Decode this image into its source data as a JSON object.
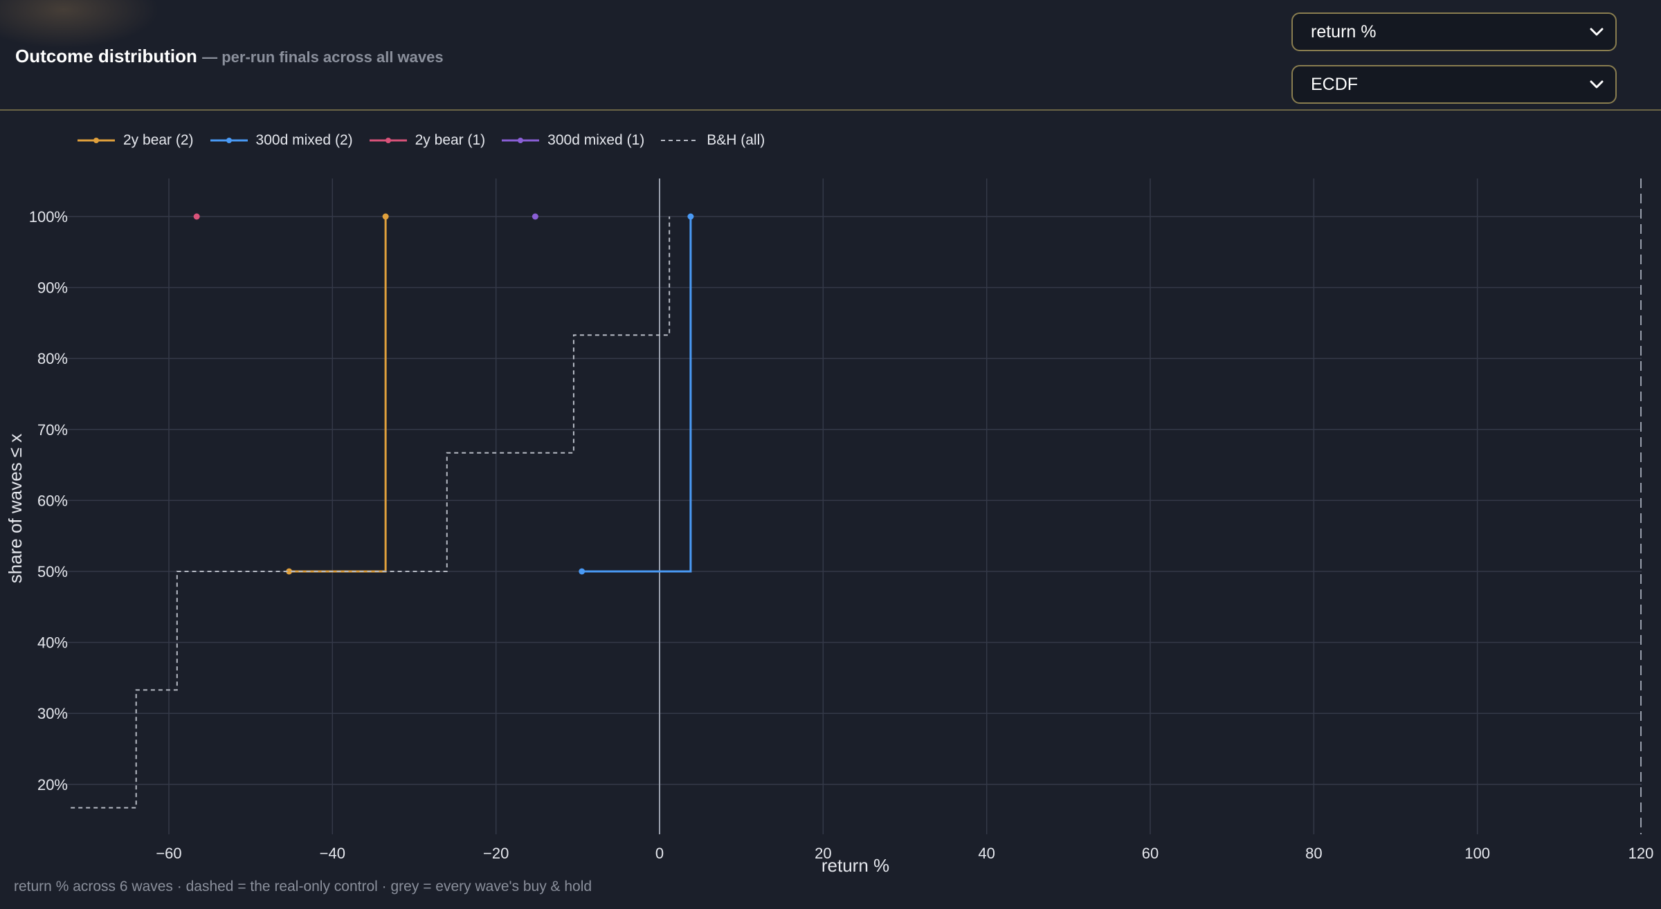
{
  "header": {
    "title": "Outcome distribution",
    "subtitle": "— per-run finals across all waves",
    "metric_select": {
      "value": "return %"
    },
    "view_select": {
      "value": "ECDF"
    }
  },
  "footnote": "return % across 6 waves · dashed = the real-only control · grey = every wave's buy & hold",
  "colors": {
    "background": "#1b1f2a",
    "grid": "#343948",
    "accent_border": "#8a7e50"
  },
  "chart_data": {
    "type": "line",
    "xlabel": "return %",
    "ylabel": "share of waves ≤ x",
    "xlim": [
      -72,
      120
    ],
    "ylim": [
      14,
      105
    ],
    "x_ticks": [
      -60,
      -40,
      -20,
      0,
      20,
      40,
      60,
      80,
      100,
      120
    ],
    "x_tick_labels": [
      "−60",
      "−40",
      "−20",
      "0",
      "20",
      "40",
      "60",
      "80",
      "100",
      "120"
    ],
    "y_ticks": [
      20,
      30,
      40,
      50,
      60,
      70,
      80,
      90,
      100
    ],
    "y_tick_labels": [
      "20%",
      "30%",
      "40%",
      "50%",
      "60%",
      "70%",
      "80%",
      "90%",
      "100%"
    ],
    "grid": true,
    "legend_position": "top-left",
    "series": [
      {
        "name": "2y bear (2)",
        "color": "#e0a03c",
        "style": "step",
        "values": [
          [
            -45.3,
            50
          ],
          [
            -33.5,
            100
          ]
        ]
      },
      {
        "name": "300d mixed (2)",
        "color": "#4a9af5",
        "style": "step",
        "values": [
          [
            -9.5,
            50
          ],
          [
            3.8,
            100
          ]
        ]
      },
      {
        "name": "2y bear (1)",
        "color": "#d9537a",
        "style": "step",
        "values": [
          [
            -56.6,
            100
          ]
        ]
      },
      {
        "name": "300d mixed (1)",
        "color": "#8a5fd6",
        "style": "step",
        "values": [
          [
            -15.2,
            100
          ]
        ]
      },
      {
        "name": "B&H (all)",
        "color": "#b8bcc6",
        "style": "dashed-step",
        "values": [
          [
            -72,
            16.7
          ],
          [
            -64,
            33.3
          ],
          [
            -59,
            50
          ],
          [
            -26,
            66.7
          ],
          [
            -10.5,
            83.3
          ],
          [
            1.2,
            100
          ]
        ]
      }
    ],
    "reference_lines": [
      {
        "axis": "x",
        "value": 0,
        "color": "#9aa0ad"
      },
      {
        "axis": "x",
        "value": 120,
        "color": "#9aa0ad",
        "dashed": true
      }
    ]
  }
}
